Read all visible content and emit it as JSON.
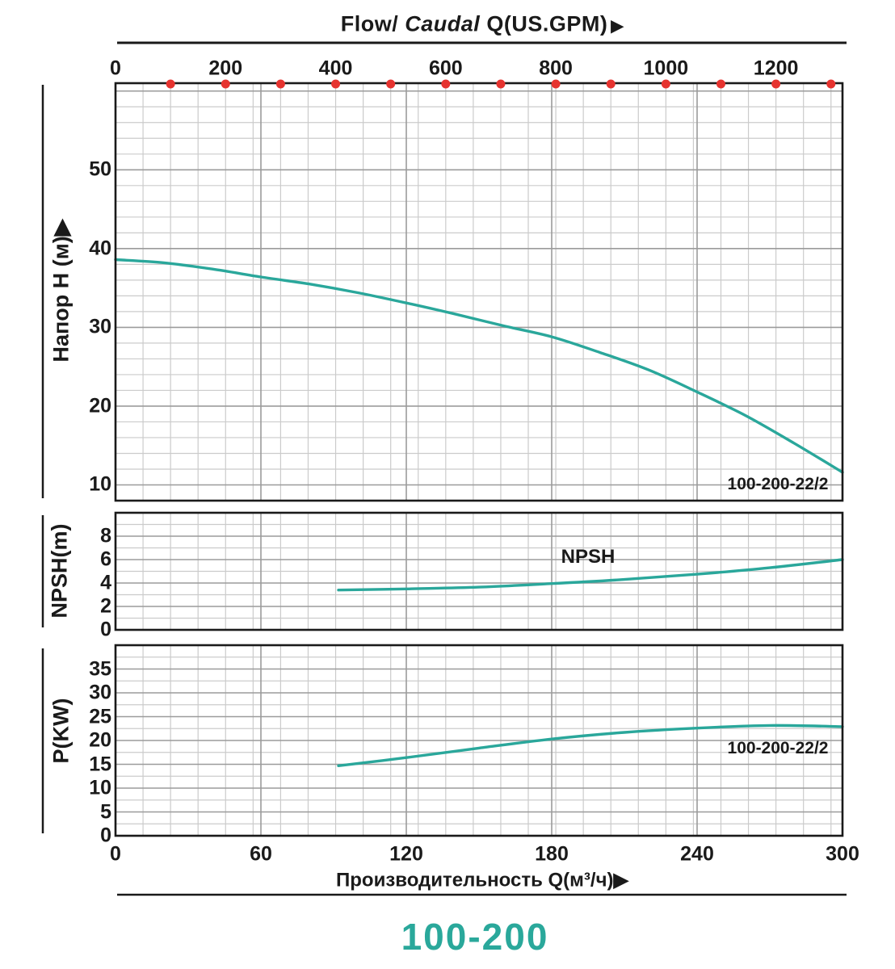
{
  "title_bottom": "100-200",
  "colors": {
    "curve": "#2AA79B",
    "dots": "#E6332F",
    "title": "#2AA89B",
    "grid_minor": "#CBCBCB",
    "grid_major": "#9B9B9B",
    "border": "#1A1A1A"
  },
  "top_axis": {
    "title_flow": "Flow/",
    "title_caudal": "Caudal",
    "title_unit": "Q(US.GPM)",
    "arrow": "▶",
    "tick_labels": [
      0,
      200,
      400,
      600,
      800,
      1000,
      1200
    ],
    "dot_positions_gpm": [
      100,
      200,
      300,
      400,
      500,
      600,
      700,
      800,
      900,
      1000,
      1100,
      1200,
      1300
    ]
  },
  "bottom_axis": {
    "title": "Производительность Q(м³/ч)▶",
    "tick_labels": [
      0,
      60,
      120,
      180,
      240,
      300
    ]
  },
  "chart_data": [
    {
      "type": "line",
      "panel": "head",
      "title": "Pump head curve",
      "ylabel": "Напор H (м)▶",
      "xlabel": "Производительность Q(м³/ч)",
      "xlabel_secondary": "Flow/ Caudal Q(US.GPM)",
      "yticks": [
        10,
        20,
        30,
        40,
        50
      ],
      "ylim": [
        8,
        61
      ],
      "xlim": [
        0,
        300
      ],
      "grid": "on",
      "curve_label": "100-200-22/2",
      "series": [
        {
          "name": "100-200-22/2",
          "x": [
            0,
            20,
            40,
            60,
            80,
            100,
            120,
            140,
            160,
            180,
            200,
            220,
            240,
            260,
            280,
            300
          ],
          "y": [
            38.6,
            38.2,
            37.4,
            36.4,
            35.5,
            34.4,
            33.1,
            31.7,
            30.2,
            28.8,
            26.8,
            24.6,
            21.8,
            18.8,
            15.3,
            11.6
          ]
        }
      ]
    },
    {
      "type": "line",
      "panel": "npsh",
      "title": "NPSH curve",
      "ylabel": "NPSH(m)",
      "yticks": [
        0,
        2,
        4,
        6,
        8
      ],
      "ylim": [
        0,
        10
      ],
      "xlim": [
        0,
        300
      ],
      "grid": "on",
      "curve_label": "NPSH",
      "series": [
        {
          "name": "NPSH",
          "x": [
            92,
            120,
            150,
            180,
            210,
            240,
            270,
            300
          ],
          "y": [
            3.4,
            3.5,
            3.65,
            3.95,
            4.3,
            4.75,
            5.3,
            6.0
          ]
        }
      ]
    },
    {
      "type": "line",
      "panel": "power",
      "title": "Power curve",
      "ylabel": "P(KW)",
      "yticks": [
        0,
        5,
        10,
        15,
        20,
        25,
        30,
        35
      ],
      "ylim": [
        0,
        40
      ],
      "xlim": [
        0,
        300
      ],
      "grid": "on",
      "curve_label": "100-200-22/2",
      "series": [
        {
          "name": "100-200-22/2",
          "x": [
            92,
            120,
            150,
            180,
            210,
            240,
            270,
            300
          ],
          "y": [
            14.7,
            16.4,
            18.4,
            20.3,
            21.7,
            22.6,
            23.15,
            22.9
          ]
        }
      ]
    }
  ]
}
